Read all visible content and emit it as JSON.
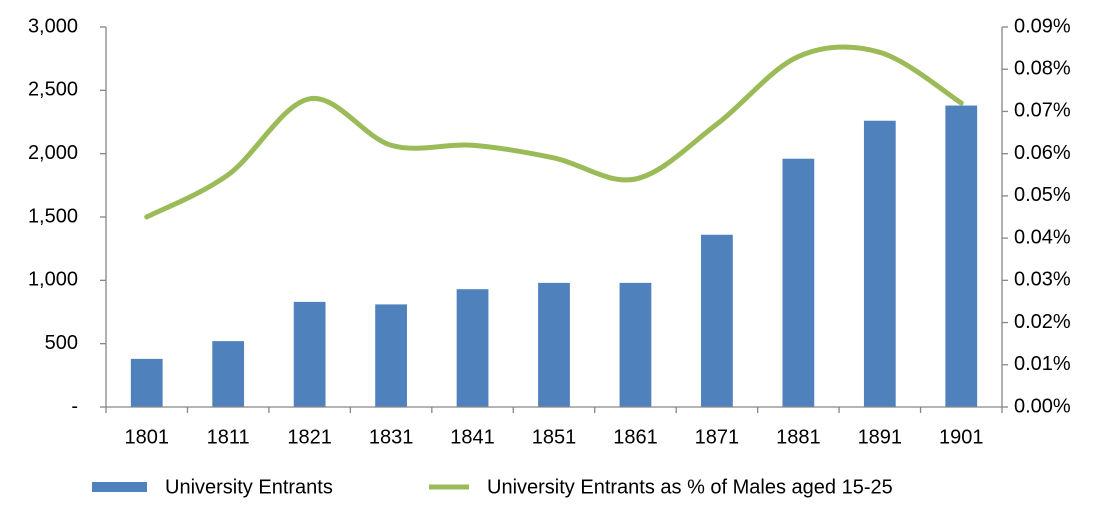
{
  "chart_data": {
    "type": "bar",
    "categories": [
      "1801",
      "1811",
      "1821",
      "1831",
      "1841",
      "1851",
      "1861",
      "1871",
      "1881",
      "1891",
      "1901"
    ],
    "ylim": [
      0,
      3000
    ],
    "yticks": [
      {
        "value": 0,
        "label": "-"
      },
      500,
      {
        "value": 1000,
        "label": "1,000"
      },
      {
        "value": 1500,
        "label": "1,500"
      },
      {
        "value": 2000,
        "label": "2,000"
      },
      {
        "value": 2500,
        "label": "2,500"
      },
      {
        "value": 3000,
        "label": "3,000"
      }
    ],
    "y2lim": [
      0,
      0.09
    ],
    "y2ticks": [
      {
        "value": 0,
        "label": "0.00%"
      },
      {
        "value": 0.01,
        "label": "0.01%"
      },
      {
        "value": 0.02,
        "label": "0.02%"
      },
      {
        "value": 0.03,
        "label": "0.03%"
      },
      {
        "value": 0.04,
        "label": "0.04%"
      },
      {
        "value": 0.05,
        "label": "0.05%"
      },
      {
        "value": 0.06,
        "label": "0.06%"
      },
      {
        "value": 0.07,
        "label": "0.07%"
      },
      {
        "value": 0.08,
        "label": "0.08%"
      },
      {
        "value": 0.09,
        "label": "0.09%"
      }
    ],
    "legend": "bottom",
    "series": [
      {
        "name": "University Entrants",
        "type": "bar",
        "color": "#4f81bd",
        "values": [
          380,
          520,
          830,
          810,
          930,
          980,
          980,
          1360,
          1960,
          2260,
          2380
        ]
      },
      {
        "name": "University Entrants as % of Males aged 15-25",
        "type": "line",
        "smooth": true,
        "axis": "y2",
        "color": "#9bbb59",
        "values": [
          0.045,
          0.055,
          0.073,
          0.062,
          0.062,
          0.059,
          0.054,
          0.067,
          0.083,
          0.084,
          0.072
        ]
      }
    ]
  }
}
